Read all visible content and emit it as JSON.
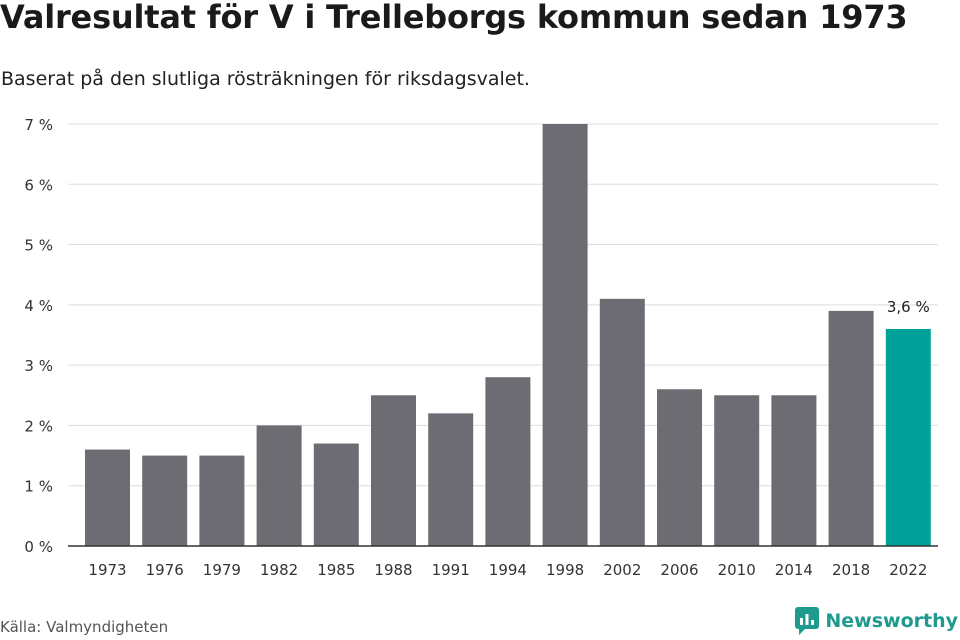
{
  "title": "Valresultat för V i Trelleborgs kommun sedan 1973",
  "subtitle": "Baserat på den slutliga rösträkningen för riksdagsvalet.",
  "source": "Källa: Valmyndigheten",
  "brand": {
    "name": "Newsworthy",
    "icon": "newsworthy-logo-icon",
    "color": "#1f9a8f"
  },
  "colors": {
    "bar": "#6d6c72",
    "highlight": "#00a199",
    "grid": "#dddddd",
    "axis": "#333333"
  },
  "chart_data": {
    "type": "bar",
    "categories": [
      "1973",
      "1976",
      "1979",
      "1982",
      "1985",
      "1988",
      "1991",
      "1994",
      "1998",
      "2002",
      "2006",
      "2010",
      "2014",
      "2018",
      "2022"
    ],
    "values": [
      1.6,
      1.5,
      1.5,
      2.0,
      1.7,
      2.5,
      2.2,
      2.8,
      7.0,
      4.1,
      2.6,
      2.5,
      2.5,
      3.9,
      3.6
    ],
    "ylim": [
      0,
      7
    ],
    "yticks": [
      0,
      1,
      2,
      3,
      4,
      5,
      6,
      7
    ],
    "ytick_labels": [
      "0 %",
      "1 %",
      "2 %",
      "3 %",
      "4 %",
      "5 %",
      "6 %",
      "7 %"
    ],
    "highlight_index": 14,
    "data_labels": [
      {
        "index": 14,
        "text": "3,6 %"
      }
    ],
    "xlabel": "",
    "ylabel": "",
    "grid": true,
    "legend": "none"
  }
}
